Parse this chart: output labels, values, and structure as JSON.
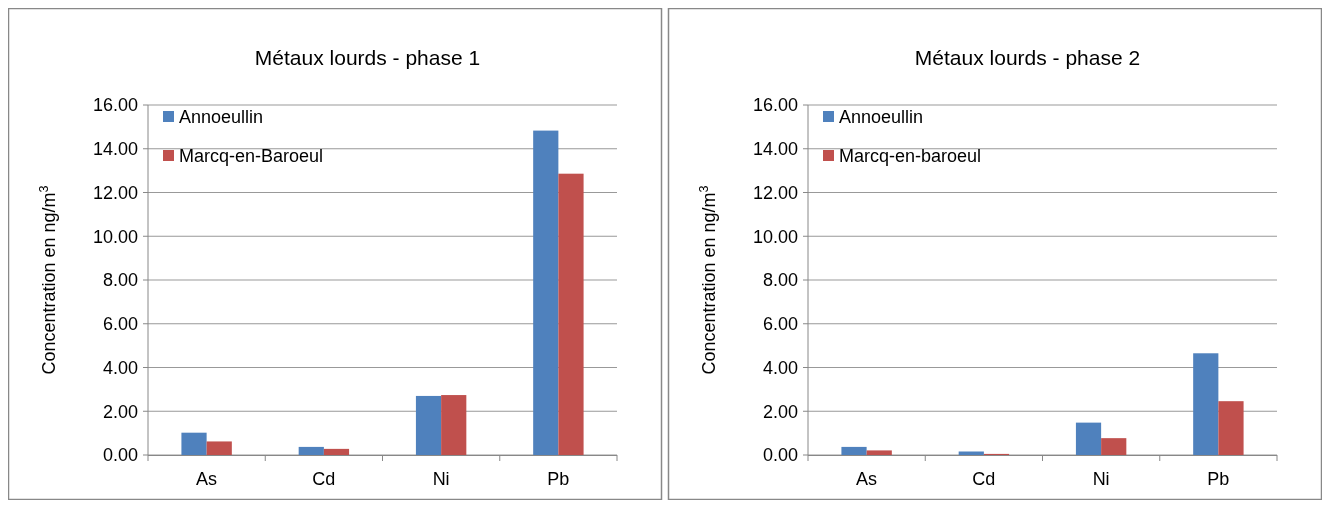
{
  "chart_data": [
    {
      "type": "bar",
      "title": "Métaux lourds - phase 1",
      "ylabel": "Concentration en ng/m$^{3}$",
      "categories": [
        "As",
        "Cd",
        "Ni",
        "Pb"
      ],
      "series": [
        {
          "name": "Annoeullin",
          "color": "#4f81bd",
          "values": [
            1.02,
            0.37,
            2.7,
            14.83
          ]
        },
        {
          "name": "Marcq-en-Baroeul",
          "color": "#c0504d",
          "values": [
            0.62,
            0.28,
            2.74,
            12.86
          ]
        }
      ],
      "ylim": [
        0,
        16
      ],
      "yticks": [
        {
          "value": 0,
          "label": "0.00"
        },
        {
          "value": 2,
          "label": "2.00"
        },
        {
          "value": 4,
          "label": "4.00"
        },
        {
          "value": 6,
          "label": "6.00"
        },
        {
          "value": 8,
          "label": "8.00"
        },
        {
          "value": 10,
          "label": "10.00"
        },
        {
          "value": 12,
          "label": "12.00"
        },
        {
          "value": 14,
          "label": "14.00"
        },
        {
          "value": 16,
          "label": "16.00"
        }
      ],
      "grid": "y",
      "legend": "top left"
    },
    {
      "type": "bar",
      "title": "Métaux lourds - phase 2",
      "ylabel": "Concentration en ng/m$^{3}$",
      "categories": [
        "As",
        "Cd",
        "Ni",
        "Pb"
      ],
      "series": [
        {
          "name": "Annoeullin",
          "color": "#4f81bd",
          "values": [
            0.37,
            0.16,
            1.48,
            4.65
          ]
        },
        {
          "name": "Marcq-en-baroeul",
          "color": "#c0504d",
          "values": [
            0.21,
            0.05,
            0.77,
            2.46
          ]
        }
      ],
      "ylim": [
        0,
        16
      ],
      "yticks": [
        {
          "value": 0,
          "label": "0.00"
        },
        {
          "value": 2,
          "label": "2.00"
        },
        {
          "value": 4,
          "label": "4.00"
        },
        {
          "value": 6,
          "label": "6.00"
        },
        {
          "value": 8,
          "label": "8.00"
        },
        {
          "value": 10,
          "label": "10.00"
        },
        {
          "value": 12,
          "label": "12.00"
        },
        {
          "value": 14,
          "label": "14.00"
        },
        {
          "value": 16,
          "label": "16.00"
        }
      ],
      "grid": "y",
      "legend": "top left"
    }
  ]
}
